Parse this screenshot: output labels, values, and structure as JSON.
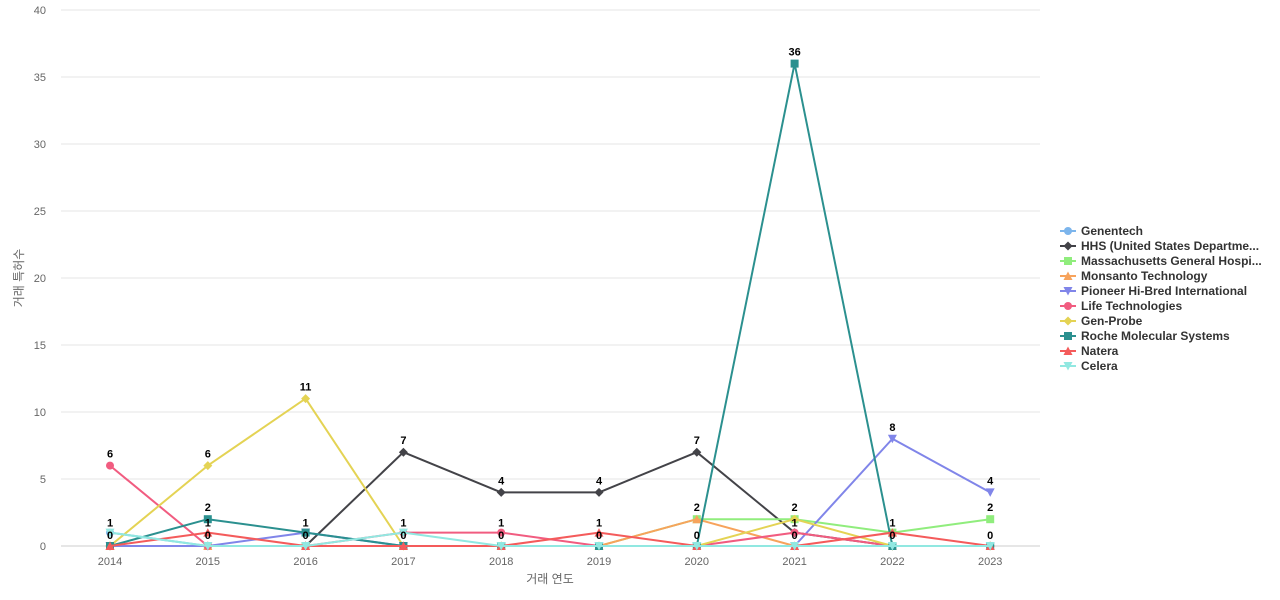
{
  "chart_data": {
    "type": "line",
    "xlabel": "거래 연도",
    "ylabel": "거래 특허수",
    "ylim": [
      0,
      40
    ],
    "yticks": [
      0,
      5,
      10,
      15,
      20,
      25,
      30,
      35,
      40
    ],
    "categories": [
      "2014",
      "2015",
      "2016",
      "2017",
      "2018",
      "2019",
      "2020",
      "2021",
      "2022",
      "2023"
    ],
    "grid": true,
    "legend_position": "right",
    "series": [
      {
        "name": "Genentech",
        "color": "#7cb5ec",
        "marker": "circle",
        "values": [
          1,
          0,
          0,
          0,
          0,
          0,
          0,
          0,
          0,
          0
        ]
      },
      {
        "name": "HHS (United States Departme...",
        "color": "#434348",
        "marker": "diamond",
        "values": [
          0,
          0,
          0,
          7,
          4,
          4,
          7,
          1,
          0,
          0
        ]
      },
      {
        "name": "Massachusetts General Hospi...",
        "color": "#90ed7d",
        "marker": "square",
        "values": [
          0,
          0,
          0,
          0,
          0,
          0,
          2,
          2,
          1,
          2
        ]
      },
      {
        "name": "Monsanto Technology",
        "color": "#f7a35c",
        "marker": "triangle",
        "values": [
          0,
          0,
          0,
          0,
          0,
          0,
          2,
          0,
          0,
          0
        ]
      },
      {
        "name": "Pioneer Hi-Bred International",
        "color": "#8085e9",
        "marker": "triangle-down",
        "values": [
          0,
          0,
          1,
          0,
          0,
          0,
          0,
          0,
          8,
          4
        ]
      },
      {
        "name": "Life Technologies",
        "color": "#f15c80",
        "marker": "circle",
        "values": [
          6,
          0,
          0,
          1,
          1,
          0,
          0,
          1,
          0,
          0
        ]
      },
      {
        "name": "Gen-Probe",
        "color": "#e4d354",
        "marker": "diamond",
        "values": [
          0,
          6,
          11,
          0,
          0,
          0,
          0,
          2,
          0,
          0
        ]
      },
      {
        "name": "Roche Molecular Systems",
        "color": "#2b908f",
        "marker": "square",
        "values": [
          0,
          2,
          1,
          0,
          0,
          0,
          0,
          36,
          0,
          0
        ]
      },
      {
        "name": "Natera",
        "color": "#f45b5b",
        "marker": "triangle",
        "values": [
          0,
          1,
          0,
          0,
          0,
          1,
          0,
          0,
          1,
          0
        ]
      },
      {
        "name": "Celera",
        "color": "#91e8e1",
        "marker": "triangle-down",
        "values": [
          1,
          0,
          0,
          1,
          0,
          0,
          0,
          0,
          0,
          0
        ]
      }
    ],
    "data_labels": [
      {
        "x": "2014",
        "text": "6",
        "y": 6
      },
      {
        "x": "2014",
        "text": "1",
        "y": 1
      },
      {
        "x": "2014",
        "text": "0",
        "y": 0
      },
      {
        "x": "2015",
        "text": "6",
        "y": 6
      },
      {
        "x": "2015",
        "text": "2",
        "y": 2
      },
      {
        "x": "2015",
        "text": "1",
        "y": 1
      },
      {
        "x": "2015",
        "text": "0",
        "y": 0
      },
      {
        "x": "2016",
        "text": "11",
        "y": 11
      },
      {
        "x": "2016",
        "text": "1",
        "y": 1
      },
      {
        "x": "2016",
        "text": "0",
        "y": 0
      },
      {
        "x": "2017",
        "text": "7",
        "y": 7
      },
      {
        "x": "2017",
        "text": "1",
        "y": 1
      },
      {
        "x": "2017",
        "text": "0",
        "y": 0
      },
      {
        "x": "2018",
        "text": "4",
        "y": 4
      },
      {
        "x": "2018",
        "text": "1",
        "y": 1
      },
      {
        "x": "2018",
        "text": "0",
        "y": 0
      },
      {
        "x": "2019",
        "text": "4",
        "y": 4
      },
      {
        "x": "2019",
        "text": "1",
        "y": 1
      },
      {
        "x": "2019",
        "text": "0",
        "y": 0
      },
      {
        "x": "2020",
        "text": "7",
        "y": 7
      },
      {
        "x": "2020",
        "text": "2",
        "y": 2
      },
      {
        "x": "2020",
        "text": "0",
        "y": 0
      },
      {
        "x": "2021",
        "text": "36",
        "y": 36
      },
      {
        "x": "2021",
        "text": "2",
        "y": 2
      },
      {
        "x": "2021",
        "text": "1",
        "y": 1
      },
      {
        "x": "2021",
        "text": "0",
        "y": 0
      },
      {
        "x": "2022",
        "text": "8",
        "y": 8
      },
      {
        "x": "2022",
        "text": "1",
        "y": 1
      },
      {
        "x": "2022",
        "text": "0",
        "y": 0
      },
      {
        "x": "2023",
        "text": "4",
        "y": 4
      },
      {
        "x": "2023",
        "text": "2",
        "y": 2
      },
      {
        "x": "2023",
        "text": "0",
        "y": 0
      }
    ]
  }
}
